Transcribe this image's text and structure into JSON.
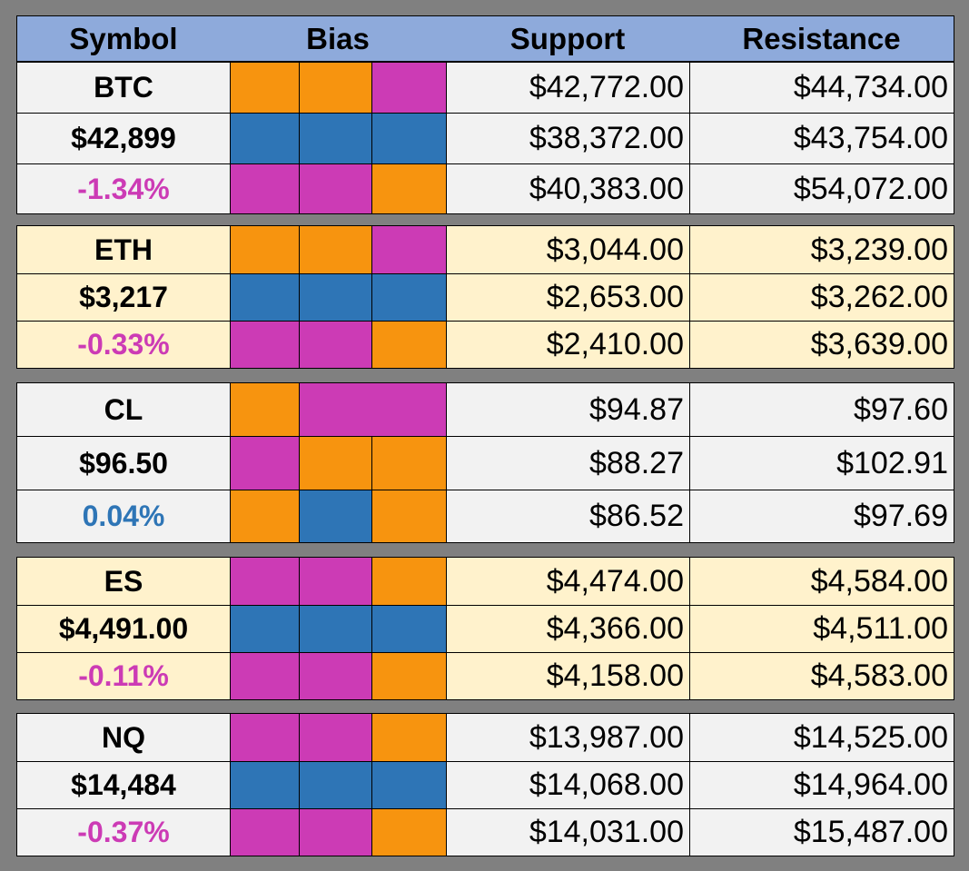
{
  "header": {
    "symbol": "Symbol",
    "bias": "Bias",
    "support": "Support",
    "resistance": "Resistance"
  },
  "colors": {
    "orange": "#f7940f",
    "magenta": "#cc3bb5",
    "blue": "#2e75b6",
    "header_bg": "#8eaadb",
    "gray_row": "#f2f2f2",
    "cream_row": "#fff2cc"
  },
  "blocks": [
    {
      "symbol": "BTC",
      "price": "$42,899",
      "change": "-1.34%",
      "change_sign": "neg",
      "rows": [
        {
          "bias": [
            "orange",
            "orange",
            "magenta"
          ],
          "support": "$42,772.00",
          "resistance": "$44,734.00"
        },
        {
          "bias": [
            "blue",
            "blue",
            "blue"
          ],
          "support": "$38,372.00",
          "resistance": "$43,754.00"
        },
        {
          "bias": [
            "magenta",
            "magenta",
            "orange"
          ],
          "support": "$40,383.00",
          "resistance": "$54,072.00"
        }
      ]
    },
    {
      "symbol": "ETH",
      "price": "$3,217",
      "change": "-0.33%",
      "change_sign": "neg",
      "rows": [
        {
          "bias": [
            "orange",
            "orange",
            "magenta"
          ],
          "support": "$3,044.00",
          "resistance": "$3,239.00"
        },
        {
          "bias": [
            "blue",
            "blue",
            "blue"
          ],
          "support": "$2,653.00",
          "resistance": "$3,262.00"
        },
        {
          "bias": [
            "magenta",
            "magenta",
            "orange"
          ],
          "support": "$2,410.00",
          "resistance": "$3,639.00"
        }
      ]
    },
    {
      "symbol": "CL",
      "price": "$96.50",
      "change": "0.04%",
      "change_sign": "pos",
      "rows": [
        {
          "bias": [
            "orange",
            "magenta",
            "magenta"
          ],
          "support": "$94.87",
          "resistance": "$97.60"
        },
        {
          "bias": [
            "magenta",
            "orange",
            "orange"
          ],
          "support": "$88.27",
          "resistance": "$102.91"
        },
        {
          "bias": [
            "orange",
            "blue",
            "orange"
          ],
          "support": "$86.52",
          "resistance": "$97.69"
        }
      ]
    },
    {
      "symbol": "ES",
      "price": "$4,491.00",
      "change": "-0.11%",
      "change_sign": "neg",
      "rows": [
        {
          "bias": [
            "magenta",
            "magenta",
            "orange"
          ],
          "support": "$4,474.00",
          "resistance": "$4,584.00"
        },
        {
          "bias": [
            "blue",
            "blue",
            "blue"
          ],
          "support": "$4,366.00",
          "resistance": "$4,511.00"
        },
        {
          "bias": [
            "magenta",
            "magenta",
            "orange"
          ],
          "support": "$4,158.00",
          "resistance": "$4,583.00"
        }
      ]
    },
    {
      "symbol": "NQ",
      "price": "$14,484",
      "change": "-0.37%",
      "change_sign": "neg",
      "rows": [
        {
          "bias": [
            "magenta",
            "magenta",
            "orange"
          ],
          "support": "$13,987.00",
          "resistance": "$14,525.00"
        },
        {
          "bias": [
            "blue",
            "blue",
            "blue"
          ],
          "support": "$14,068.00",
          "resistance": "$14,964.00"
        },
        {
          "bias": [
            "magenta",
            "magenta",
            "orange"
          ],
          "support": "$14,031.00",
          "resistance": "$15,487.00"
        }
      ]
    }
  ]
}
